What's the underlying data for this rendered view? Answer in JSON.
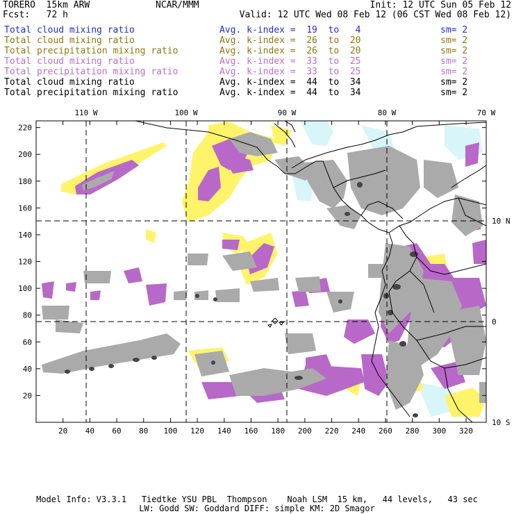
{
  "header": {
    "model": "TORERO  15km ARW",
    "center": "NCAR/MMM",
    "init": "Init: 12 UTC Sun 05 Feb 12",
    "fcst": "Fcst:   72 h",
    "valid": "Valid: 12 UTC Wed 08 Feb 12 (06 CST Wed 08 Feb 12)"
  },
  "legend": [
    {
      "name": "Total cloud mixing ratio",
      "avg": "Avg. k-index =  19  to   4",
      "sm": "sm= 2",
      "color": "#1f2fd0"
    },
    {
      "name": "Total cloud mixing ratio",
      "avg": "Avg. k-index =  26  to  20",
      "sm": "sm= 2",
      "color": "#8a7a10"
    },
    {
      "name": "Total precipitation mixing ratio",
      "avg": "Avg. k-index =  26  to  20",
      "sm": "sm= 2",
      "color": "#8a7a10"
    },
    {
      "name": "Total cloud mixing ratio",
      "avg": "Avg. k-index =  33  to  25",
      "sm": "sm= 2",
      "color": "#b870c8"
    },
    {
      "name": "Total precipitation mixing ratio",
      "avg": "Avg. k-index =  33  to  25",
      "sm": "sm= 2",
      "color": "#b870c8"
    },
    {
      "name": "Total cloud mixing ratio",
      "avg": "Avg. k-index =  44  to  34",
      "sm": "sm= 2",
      "color": "#000000"
    },
    {
      "name": "Total precipitation mixing ratio",
      "avg": "Avg. k-index =  44  to  34",
      "sm": "sm= 2",
      "color": "#000000"
    }
  ],
  "map": {
    "top_lon_labels": [
      "110 W",
      "100 W",
      "90 W",
      "80 W",
      "70 W"
    ],
    "right_lat_labels": [
      "10 N",
      "0",
      "10 S"
    ],
    "x_ticks": [
      "20",
      "40",
      "60",
      "80",
      "100",
      "120",
      "140",
      "160",
      "180",
      "200",
      "220",
      "240",
      "260",
      "280",
      "300",
      "320"
    ],
    "y_ticks": [
      "20",
      "40",
      "60",
      "80",
      "100",
      "120",
      "140",
      "160",
      "180",
      "200",
      "220"
    ],
    "colors": {
      "yellow": "#fff36a",
      "purple": "#b868c8",
      "gray": "#aaaaaa",
      "dark": "#555555",
      "cyan": "#d6f6fb"
    }
  },
  "footer": {
    "line1": "Model Info: V3.3.1   Tiedtke YSU PBL  Thompson    Noah LSM  15 km,   44 levels,   43 sec",
    "line2": "LW: Godd SW: Goddard DIFF: simple KM: 2D Smagor"
  }
}
